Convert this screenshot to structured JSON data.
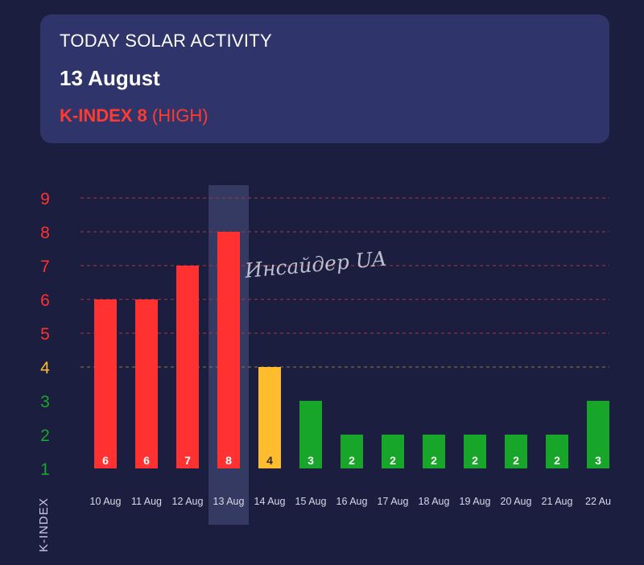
{
  "header": {
    "title": "TODAY SOLAR ACTIVITY",
    "date": "13 August",
    "kindex_prefix": "K-INDEX 8",
    "kindex_level": "(HIGH)"
  },
  "watermark": "Инсайдер UA",
  "chart_data": {
    "type": "bar",
    "title": "",
    "ylabel": "K-INDEX",
    "xlabel": "",
    "ylim": [
      1,
      9
    ],
    "yticks": [
      1,
      2,
      3,
      4,
      5,
      6,
      7,
      8,
      9
    ],
    "categories": [
      "10 Aug",
      "11 Aug",
      "12 Aug",
      "13 Aug",
      "14 Aug",
      "15 Aug",
      "16 Aug",
      "17 Aug",
      "18 Aug",
      "19 Aug",
      "20 Aug",
      "21 Aug",
      "22 Au"
    ],
    "values": [
      6,
      6,
      7,
      8,
      4,
      3,
      2,
      2,
      2,
      2,
      2,
      2,
      3
    ],
    "highlight_index": 3,
    "grid": true,
    "colors": {
      "high": "#ff3131",
      "moderate": "#ffbd2e",
      "low": "#17a52a",
      "highlight": "#3a3f68",
      "grid_high": "#a8343f",
      "grid_moderate": "#8f7f3a",
      "bar_label": "#ffffff",
      "bar_label_moderate": "#2a2a2a",
      "tick_x": "#d8d8e6"
    }
  }
}
